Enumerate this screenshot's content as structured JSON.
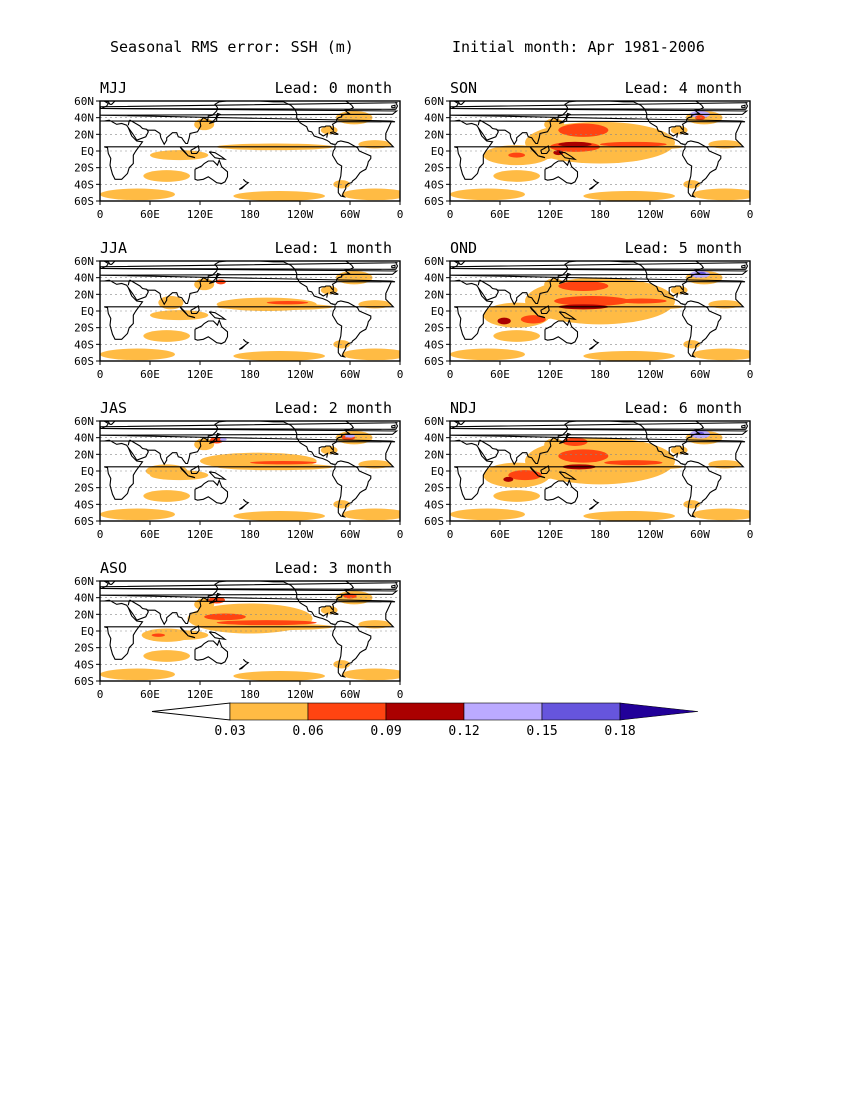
{
  "title_left": "Seasonal RMS error: SSH (m)",
  "title_right": "Initial month: Apr 1981-2006",
  "lead_prefix": "Lead:",
  "lead_suffix": "month",
  "panels": [
    {
      "season": "MJJ",
      "lead": 0
    },
    {
      "season": "JJA",
      "lead": 1
    },
    {
      "season": "JAS",
      "lead": 2
    },
    {
      "season": "ASO",
      "lead": 3
    },
    {
      "season": "SON",
      "lead": 4
    },
    {
      "season": "OND",
      "lead": 5
    },
    {
      "season": "NDJ",
      "lead": 6
    }
  ],
  "lat_ticks": [
    "60N",
    "40N",
    "20N",
    "EQ",
    "20S",
    "40S",
    "60S"
  ],
  "lon_ticks": [
    "0",
    "60E",
    "120E",
    "180",
    "120W",
    "60W",
    "0"
  ],
  "colorbar": {
    "labels": [
      "0.03",
      "0.06",
      "0.09",
      "0.12",
      "0.15",
      "0.18"
    ],
    "colors": [
      "#ffffff",
      "#ffbb44",
      "#ff4411",
      "#aa0000",
      "#bbaaff",
      "#6655dd",
      "#220099"
    ]
  }
}
